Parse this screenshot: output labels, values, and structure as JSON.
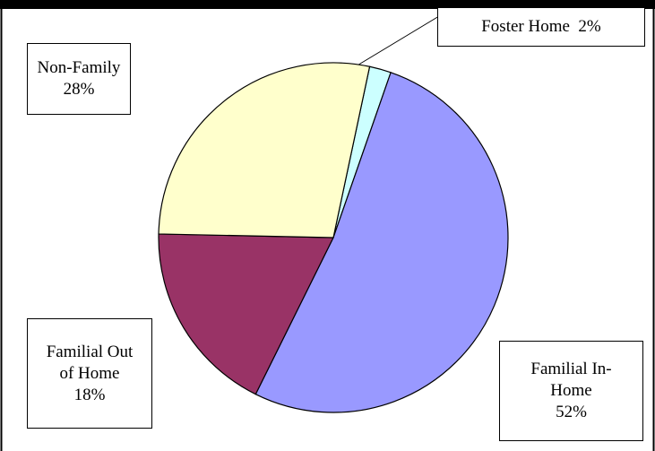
{
  "chart_data": {
    "type": "pie",
    "categories": [
      "Foster Home",
      "Familial In-Home",
      "Familial Out of Home",
      "Non-Family"
    ],
    "values": [
      2,
      52,
      18,
      28
    ],
    "value_labels": [
      "2%",
      "52%",
      "18%",
      "28%"
    ],
    "colors": [
      "#ccffff",
      "#9999ff",
      "#993366",
      "#ffffcc"
    ]
  }
}
